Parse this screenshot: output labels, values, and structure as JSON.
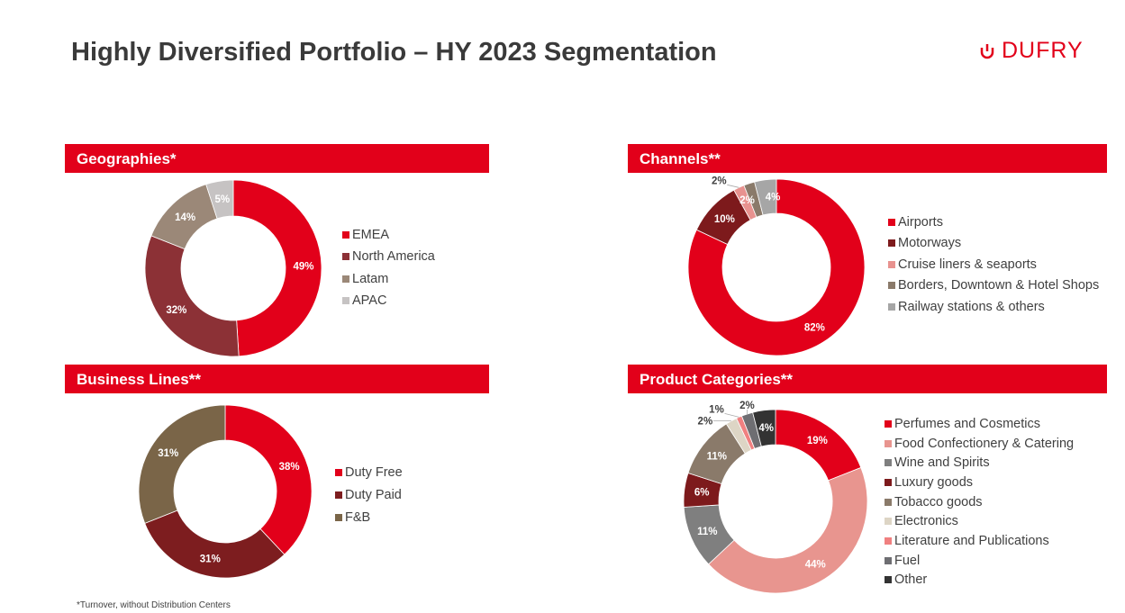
{
  "header": {
    "title": "Highly Diversified Portfolio – HY 2023 Segmentation",
    "logo_text": "DUFRY"
  },
  "footnote": "*Turnover, without Distribution Centers",
  "chart_data": [
    {
      "type": "pie",
      "donut": true,
      "title": "Geographies*",
      "categories": [
        "EMEA",
        "North America",
        "Latam",
        "APAC"
      ],
      "values": [
        49,
        32,
        14,
        5
      ],
      "colors": [
        "#e2001a",
        "#8c3136",
        "#9b8878",
        "#c6c3c3"
      ]
    },
    {
      "type": "pie",
      "donut": true,
      "title": "Channels**",
      "categories": [
        "Airports",
        "Motorways",
        "Cruise liners & seaports",
        "Borders, Downtown & Hotel Shops",
        "Railway stations & others"
      ],
      "values": [
        82,
        10,
        2,
        2,
        4
      ],
      "colors": [
        "#e2001a",
        "#7d1a1c",
        "#e8928f",
        "#8a7a6a",
        "#a6a6a6"
      ]
    },
    {
      "type": "pie",
      "donut": true,
      "title": "Business Lines**",
      "categories": [
        "Duty Free",
        "Duty Paid",
        "F&B"
      ],
      "values": [
        38,
        31,
        31
      ],
      "colors": [
        "#e2001a",
        "#7d1d1f",
        "#7a6548"
      ]
    },
    {
      "type": "pie",
      "donut": true,
      "title": "Product Categories**",
      "categories": [
        "Perfumes and Cosmetics",
        "Food Confectionery & Catering",
        "Wine and Spirits",
        "Luxury goods",
        "Tobacco goods",
        "Electronics",
        "Literature and Publications",
        "Fuel",
        "Other"
      ],
      "values": [
        19,
        44,
        11,
        6,
        11,
        2,
        1,
        2,
        4
      ],
      "colors": [
        "#e2001a",
        "#e8958f",
        "#7f7f7f",
        "#7d1a1c",
        "#8a7a6a",
        "#ddd5c5",
        "#f08080",
        "#6e6e72",
        "#333333"
      ]
    }
  ]
}
